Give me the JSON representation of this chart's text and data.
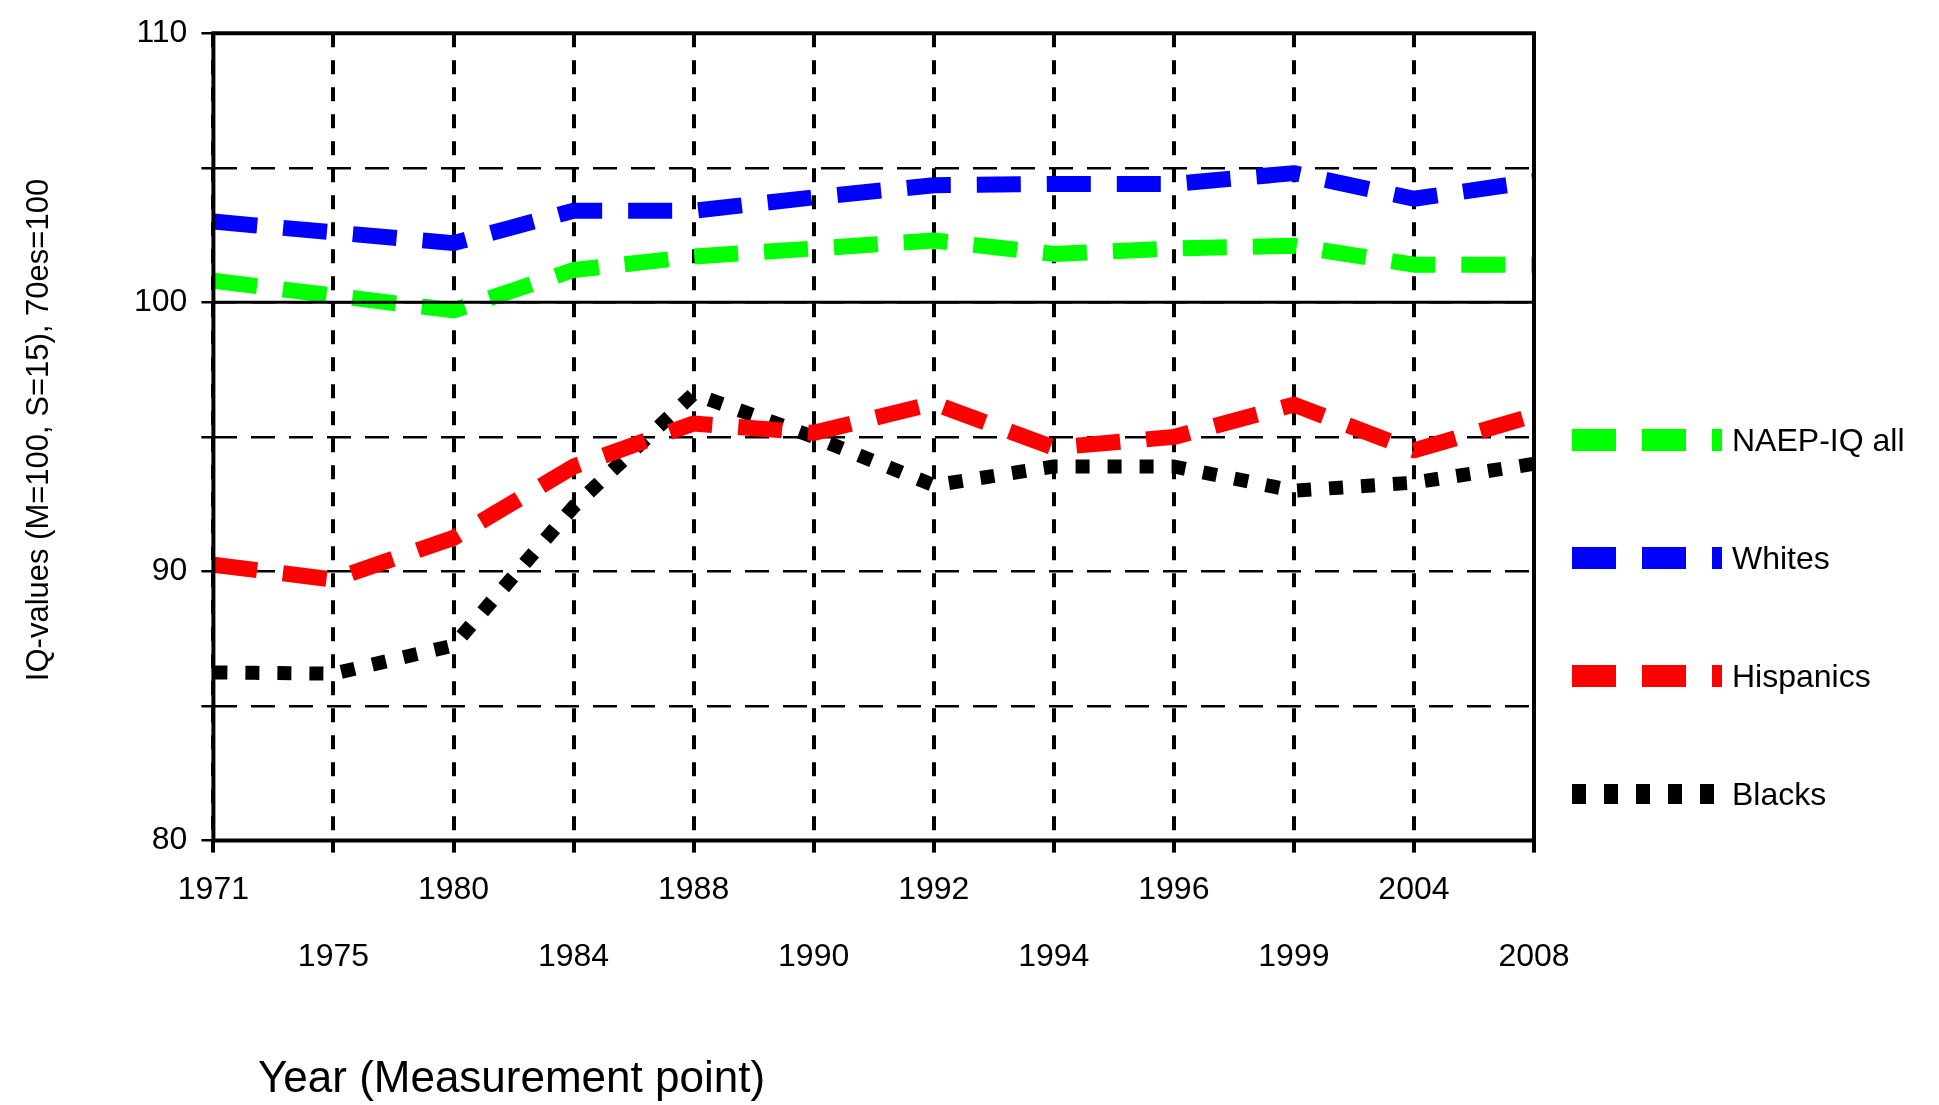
{
  "chart_data": {
    "type": "line",
    "xlabel": "Year (Measurement point)",
    "ylabel": "IQ-values (M=100, S=15), 70es=100",
    "categories": [
      "1971",
      "1975",
      "1980",
      "1984",
      "1988",
      "1990",
      "1992",
      "1994",
      "1996",
      "1999",
      "2004",
      "2008"
    ],
    "series": [
      {
        "name": "NAEP-IQ all",
        "color": "#00ff00",
        "line_style": "dashed",
        "values": [
          100.8,
          100.25,
          99.7,
          101.2,
          101.7,
          102.0,
          102.3,
          101.8,
          102.0,
          102.1,
          101.4,
          101.4
        ]
      },
      {
        "name": "Whites",
        "color": "#0000ff",
        "line_style": "dashed",
        "values": [
          103.0,
          102.6,
          102.2,
          103.4,
          103.4,
          103.9,
          104.35,
          104.4,
          104.4,
          104.8,
          103.85,
          104.5
        ]
      },
      {
        "name": "Hispanics",
        "color": "#ff0000",
        "line_style": "dashed",
        "values": [
          90.25,
          89.7,
          91.25,
          93.9,
          95.5,
          95.15,
          96.25,
          94.6,
          95.0,
          96.2,
          94.5,
          95.8
        ]
      },
      {
        "name": "Blacks",
        "color": "#000000",
        "line_style": "dotted",
        "values": [
          86.25,
          86.2,
          87.25,
          92.4,
          96.6,
          95.0,
          93.2,
          93.9,
          93.9,
          93.0,
          93.3,
          94.0
        ]
      }
    ],
    "ylim": [
      80,
      110
    ],
    "yticks": [
      80,
      {
        "value": 85,
        "label": null
      },
      90,
      {
        "value": 95,
        "label": null
      },
      100,
      {
        "value": 105,
        "label": null
      },
      110
    ],
    "ref_lines": [
      {
        "axis": "y",
        "value": 100,
        "label": null,
        "color": "#000000",
        "line_style": "solid"
      }
    ],
    "grid": true,
    "legend": "right",
    "marker": "none"
  }
}
